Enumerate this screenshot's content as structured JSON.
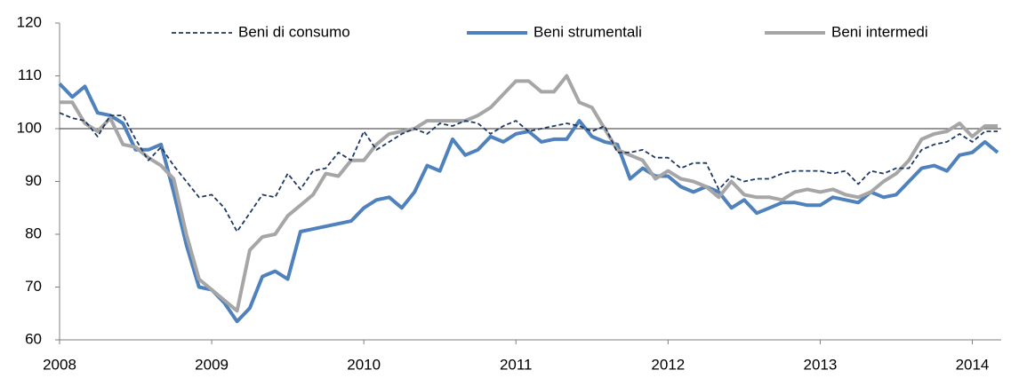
{
  "chart_data": {
    "type": "line",
    "categories": [
      "2008",
      null,
      null,
      null,
      null,
      null,
      null,
      null,
      null,
      null,
      null,
      null,
      "2009",
      null,
      null,
      null,
      null,
      null,
      null,
      null,
      null,
      null,
      null,
      null,
      "2010",
      null,
      null,
      null,
      null,
      null,
      null,
      null,
      null,
      null,
      null,
      null,
      "2011",
      null,
      null,
      null,
      null,
      null,
      null,
      null,
      null,
      null,
      null,
      null,
      "2012",
      null,
      null,
      null,
      null,
      null,
      null,
      null,
      null,
      null,
      null,
      null,
      "2013",
      null,
      null,
      null,
      null,
      null,
      null,
      null,
      null,
      null,
      null,
      null,
      "2014",
      null,
      null
    ],
    "series": [
      {
        "name": "Beni di consumo",
        "color": "#1f3864",
        "line_style": "dashed",
        "values": [
          103,
          102,
          101.5,
          98.5,
          102.5,
          102.5,
          98,
          94,
          96.5,
          93,
          90,
          87,
          87.5,
          85,
          80.5,
          84,
          87.5,
          87,
          91.5,
          88.5,
          92,
          92.5,
          95.5,
          94,
          99.5,
          96,
          97.5,
          99,
          100,
          99,
          101,
          100.5,
          101.5,
          101,
          99,
          100.5,
          101.5,
          99.5,
          100,
          100.5,
          101,
          100.5,
          99.5,
          100.5,
          95.5,
          95.5,
          96,
          94.5,
          94.5,
          92.5,
          93.5,
          93.5,
          88.5,
          91,
          90,
          90.5,
          90.5,
          91.5,
          92,
          92,
          92,
          91.5,
          92,
          89.5,
          92,
          91.5,
          92.5,
          92.5,
          96,
          97,
          97.5,
          99,
          97.5,
          99.5,
          99.5
        ]
      },
      {
        "name": "Beni strumentali",
        "color": "#4f81bd",
        "line_style": "solid",
        "values": [
          108.5,
          106,
          108,
          103,
          102.5,
          101,
          96,
          96,
          97,
          88,
          78,
          70,
          69.5,
          67,
          63.5,
          66,
          72,
          73,
          71.5,
          80.5,
          81,
          81.5,
          82,
          82.5,
          85,
          86.5,
          87,
          85,
          88,
          93,
          92,
          98,
          95,
          96,
          98.5,
          97.5,
          99,
          99.5,
          97.5,
          98,
          98,
          101.5,
          98.5,
          97.5,
          97,
          90.5,
          92.5,
          91,
          91,
          89,
          88,
          89,
          88,
          85,
          86.5,
          84,
          85,
          86,
          86,
          85.5,
          85.5,
          87,
          86.5,
          86,
          88,
          87,
          87.5,
          90,
          92.5,
          93,
          92,
          95,
          95.5,
          97.5,
          95.5
        ]
      },
      {
        "name": "Beni intermedi",
        "color": "#a6a6a6",
        "line_style": "solid",
        "values": [
          105,
          105,
          101,
          99.5,
          102,
          97,
          96.5,
          94.5,
          93,
          90.5,
          80,
          71.5,
          69.5,
          67.5,
          65.5,
          77,
          79.5,
          80,
          83.5,
          85.5,
          87.5,
          91.5,
          91,
          94,
          94,
          97,
          99,
          99.5,
          100,
          101.5,
          101.5,
          101.5,
          101.5,
          102.5,
          104,
          106.5,
          109,
          109,
          107,
          107,
          110,
          105,
          104,
          100,
          96,
          95,
          94,
          90.5,
          92,
          90.5,
          90,
          89,
          87,
          90,
          87.5,
          87,
          87,
          86.5,
          88,
          88.5,
          88,
          88.5,
          87.5,
          87,
          88,
          90,
          91.5,
          94,
          98,
          99,
          99.5,
          101,
          98.5,
          100.5,
          100.5
        ]
      }
    ],
    "ylim": [
      60,
      120
    ],
    "yticks": [
      60,
      70,
      80,
      90,
      100,
      110,
      120
    ],
    "reference_line": 100,
    "grid": false,
    "legend": "top"
  }
}
